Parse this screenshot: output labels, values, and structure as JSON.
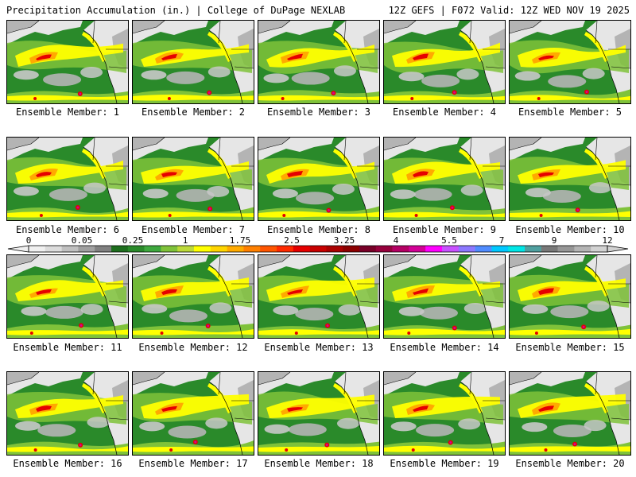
{
  "header": {
    "left_title": "Precipitation Accumulation (in.) | College of DuPage NEXLAB",
    "right_title": "12Z GEFS | F072 Valid: 12Z WED NOV 19 2025"
  },
  "members": [
    {
      "label": "Ensemble Member: 1"
    },
    {
      "label": "Ensemble Member: 2"
    },
    {
      "label": "Ensemble Member: 3"
    },
    {
      "label": "Ensemble Member: 4"
    },
    {
      "label": "Ensemble Member: 5"
    },
    {
      "label": "Ensemble Member: 6"
    },
    {
      "label": "Ensemble Member: 7"
    },
    {
      "label": "Ensemble Member: 8"
    },
    {
      "label": "Ensemble Member: 9"
    },
    {
      "label": "Ensemble Member: 10"
    },
    {
      "label": "Ensemble Member: 11"
    },
    {
      "label": "Ensemble Member: 12"
    },
    {
      "label": "Ensemble Member: 13"
    },
    {
      "label": "Ensemble Member: 14"
    },
    {
      "label": "Ensemble Member: 15"
    },
    {
      "label": "Ensemble Member: 16"
    },
    {
      "label": "Ensemble Member: 17"
    },
    {
      "label": "Ensemble Member: 18"
    },
    {
      "label": "Ensemble Member: 19"
    },
    {
      "label": "Ensemble Member: 20"
    }
  ],
  "colorbar": {
    "tick_labels": [
      "0",
      "0.05",
      "0.25",
      "1",
      "1.75",
      "2.5",
      "3.25",
      "4",
      "5.5",
      "7",
      "9",
      "12"
    ],
    "colors": [
      "#f0f0f0",
      "#dcdcdc",
      "#c0c0c0",
      "#a0a0a0",
      "#808080",
      "#1e6e1e",
      "#2a8a2a",
      "#3ea83e",
      "#7fc23a",
      "#bcd93a",
      "#ffff00",
      "#ffd500",
      "#ffaa00",
      "#ff8000",
      "#ff5500",
      "#ff2a00",
      "#e60000",
      "#c80000",
      "#aa0000",
      "#8c0000",
      "#780028",
      "#96003c",
      "#b40064",
      "#d20096",
      "#ff00ff",
      "#c850ff",
      "#8c78ff",
      "#508cff",
      "#00c8ff",
      "#00e6e6",
      "#50a0a0",
      "#787878",
      "#969696",
      "#b4b4b4",
      "#d2d2d2"
    ]
  },
  "map_colors": {
    "land_light": "#e6e6e6",
    "land_mid": "#b4b4b4",
    "ocean_green": "#2a8a2a",
    "light_green": "#7fc23a",
    "yellow": "#ffff00",
    "orange": "#ffaa00",
    "red": "#e60000",
    "magenta": "#d20096"
  }
}
